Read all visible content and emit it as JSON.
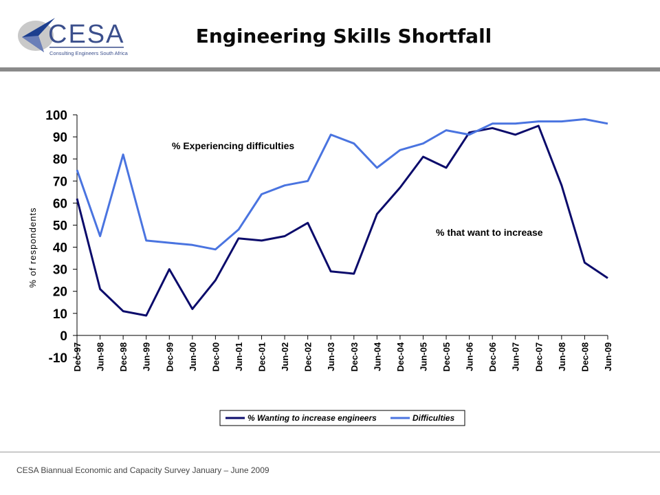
{
  "header": {
    "title": "Engineering Skills Shortfall",
    "logo_text": "CESA",
    "logo_subtext": "Consulting Engineers South Africa"
  },
  "footer": {
    "text": "CESA Biannual Economic and Capacity Survey January – June 2009"
  },
  "colors": {
    "series_dark": "#0b0b6b",
    "series_light": "#4a74e0",
    "header_rule": "#8a8a8a"
  },
  "chart_data": {
    "type": "line",
    "title": "",
    "xlabel": "",
    "ylabel": "% of respondents",
    "ylim": [
      -10,
      100
    ],
    "yticks": [
      -10,
      0,
      10,
      20,
      30,
      40,
      50,
      60,
      70,
      80,
      90,
      100
    ],
    "grid": false,
    "legend_position": "bottom",
    "categories": [
      "Dec-97",
      "Jun-98",
      "Dec-98",
      "Jun-99",
      "Dec-99",
      "Jun-00",
      "Dec-00",
      "Jun-01",
      "Dec-01",
      "Jun-02",
      "Dec-02",
      "Jun-03",
      "Dec-03",
      "Jun-04",
      "Dec-04",
      "Jun-05",
      "Dec-05",
      "Jun-06",
      "Dec-06",
      "Jun-07",
      "Dec-07",
      "Jun-08",
      "Dec-08",
      "Jun-09"
    ],
    "series": [
      {
        "name": "% Wanting to increase engineers",
        "color": "#0b0b6b",
        "values": [
          62,
          21,
          11,
          9,
          30,
          12,
          25,
          44,
          43,
          45,
          51,
          29,
          28,
          55,
          67,
          81,
          76,
          92,
          94,
          91,
          95,
          68,
          33,
          26
        ]
      },
      {
        "name": "Difficulties",
        "color": "#4a74e0",
        "values": [
          75,
          45,
          82,
          43,
          42,
          41,
          39,
          48,
          64,
          68,
          70,
          91,
          87,
          76,
          84,
          87,
          93,
          91,
          96,
          96,
          97,
          97,
          98,
          96
        ]
      }
    ],
    "annotations": [
      {
        "text": "% Experiencing difficulties",
        "series": 1
      },
      {
        "text": "% that want to increase",
        "series": 0
      }
    ]
  }
}
